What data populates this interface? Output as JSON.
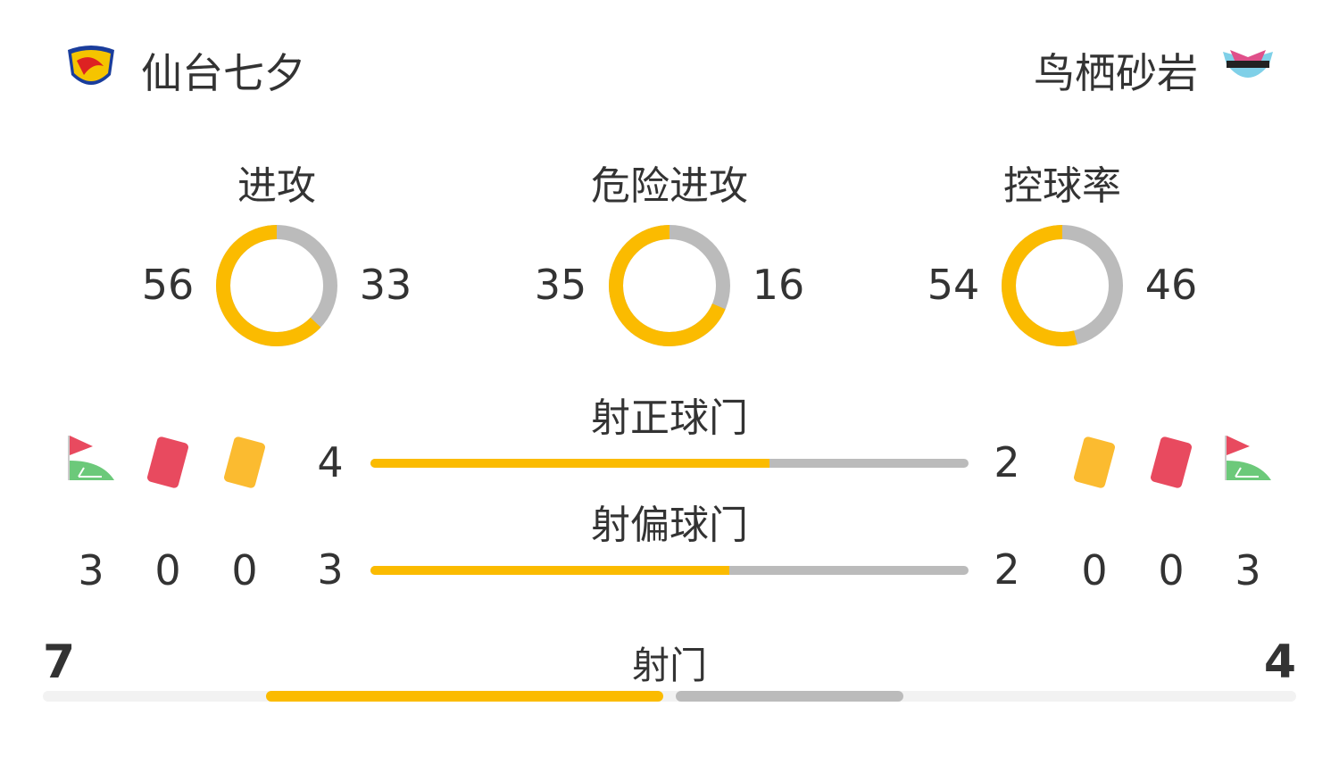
{
  "home": {
    "name": "仙台七夕",
    "logo_text": "VEGALTA"
  },
  "away": {
    "name": "鸟栖砂岩",
    "logo_text": "sagantosu"
  },
  "colors": {
    "home": "#fbbb00",
    "away": "#bbbbbb",
    "red_card": "#e84a5f",
    "yellow_card": "#fbbb30",
    "corner": "#6cc97a"
  },
  "donuts": [
    {
      "label": "进攻",
      "home": 56,
      "away": 33
    },
    {
      "label": "危险进攻",
      "home": 35,
      "away": 16
    },
    {
      "label": "控球率",
      "home": 54,
      "away": 46
    }
  ],
  "bars": [
    {
      "label": "射正球门",
      "home": 4,
      "away": 2
    },
    {
      "label": "射偏球门",
      "home": 3,
      "away": 2
    }
  ],
  "events": {
    "home": {
      "corners": 3,
      "red_cards": 0,
      "yellow_cards": 0
    },
    "away": {
      "corners": 3,
      "red_cards": 0,
      "yellow_cards": 0
    }
  },
  "shots": {
    "label": "射门",
    "home": 7,
    "away": 4
  }
}
